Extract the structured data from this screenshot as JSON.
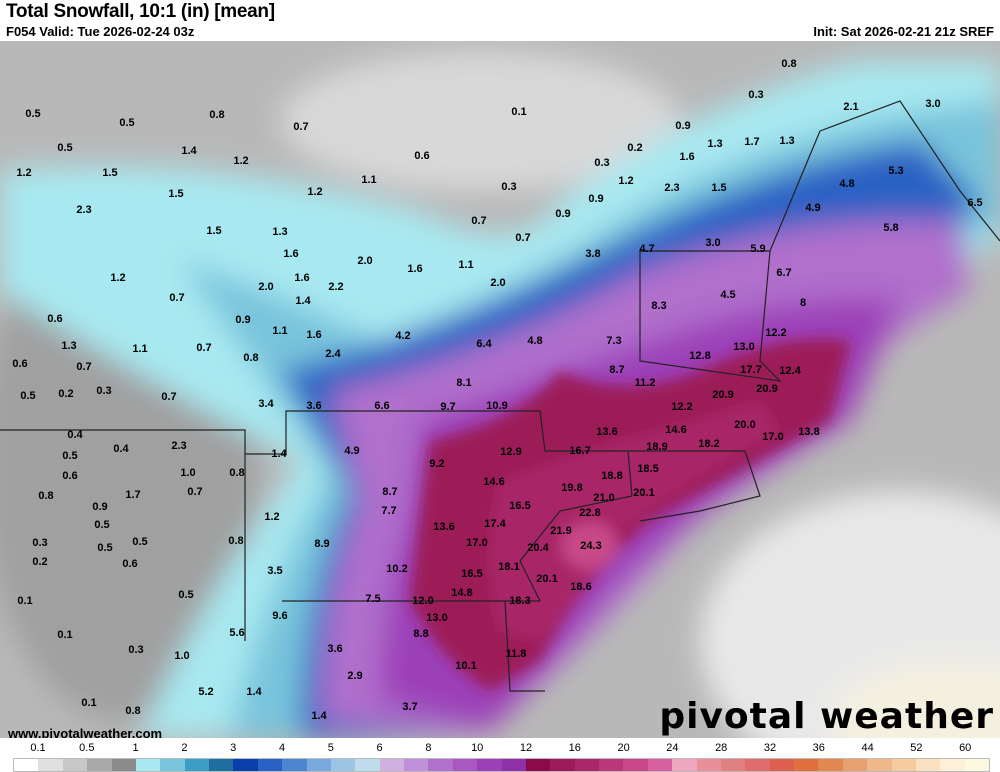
{
  "header": {
    "title": "Total Snowfall, 10:1 (in) [mean]",
    "valid": "F054 Valid: Tue 2026-02-24 03z",
    "init": "Init: Sat 2026-02-21 21z SREF"
  },
  "branding": {
    "logo": "pivotal weather",
    "url": "www.pivotalweather.com"
  },
  "legend": {
    "ticks": [
      "0.1",
      "0.5",
      "1",
      "2",
      "3",
      "4",
      "5",
      "6",
      "8",
      "10",
      "12",
      "16",
      "20",
      "24",
      "28",
      "32",
      "36",
      "44",
      "52",
      "60"
    ],
    "colors": [
      "#ffffff",
      "#e0e0e0",
      "#c8c8c8",
      "#a8a8a8",
      "#8c8c8c",
      "#a8e8f0",
      "#78c4dc",
      "#3c9ec4",
      "#1e6ea0",
      "#0a3eaa",
      "#2a62c4",
      "#4c86d0",
      "#78a8dc",
      "#9cc4e4",
      "#c0dcec",
      "#d0b0e0",
      "#c090d8",
      "#b070cc",
      "#a858c0",
      "#9c40b8",
      "#9030a8",
      "#8c0a48",
      "#9c1a58",
      "#a82868",
      "#b83878",
      "#c84888",
      "#d860a0",
      "#f0a8c0",
      "#e89098",
      "#e08080",
      "#e06c6c",
      "#e06050",
      "#e07040",
      "#e08850",
      "#e8a070",
      "#f0b888",
      "#f4cca0",
      "#f8e0c0",
      "#fcf0d8",
      "#fcf8e0"
    ]
  },
  "map": {
    "values": [
      "0.5",
      "0.5",
      "0.8",
      "0.7",
      "0.1",
      "0.8",
      "0.3",
      "0.9",
      "2.1",
      "3.0",
      "0.5",
      "1.4",
      "1.2",
      "0.6",
      "0.2",
      "1.6",
      "1.3",
      "1.7",
      "1.3",
      "1.2",
      "1.5",
      "1.1",
      "0.3",
      "1.2",
      "0.3",
      "2.3",
      "1.5",
      "0.9",
      "4.8",
      "5.3",
      "1.5",
      "1.2",
      "2.3",
      "0.7",
      "0.9",
      "4.9",
      "6.5",
      "1.5",
      "1.3",
      "0.7",
      "4.7",
      "3.0",
      "5.9",
      "5.8",
      "1.6",
      "2.0",
      "1.6",
      "1.1",
      "3.8",
      "1.2",
      "2.0",
      "1.6",
      "2.2",
      "2.0",
      "6.7",
      "0.7",
      "1.4",
      "8.3",
      "4.5",
      "8",
      "0.6",
      "0.9",
      "1.1",
      "1.6",
      "4.2",
      "6.4",
      "4.8",
      "7.3",
      "12.2",
      "1.3",
      "1.1",
      "0.7",
      "0.8",
      "2.4",
      "12.8",
      "13.0",
      "0.6",
      "0.7",
      "8.1",
      "8.7",
      "11.2",
      "17.7",
      "12.4",
      "0.5",
      "0.2",
      "0.3",
      "0.7",
      "20.9",
      "20.9",
      "3.4",
      "3.6",
      "6.6",
      "9.7",
      "10.9",
      "12.2",
      "0.4",
      "2.3",
      "1.4",
      "4.9",
      "12.9",
      "16.7",
      "13.6",
      "14.6",
      "18.9",
      "18.2",
      "20.0",
      "17.0",
      "13.8",
      "0.4",
      "0.5",
      "9.2",
      "18.8",
      "18.5",
      "0.6",
      "1.0",
      "0.8",
      "14.6",
      "19.8",
      "21.0",
      "20.1",
      "0.8",
      "0.9",
      "1.7",
      "0.7",
      "8.7",
      "16.5",
      "22.8",
      "0.5",
      "1.2",
      "7.7",
      "17.4",
      "21.9",
      "0.3",
      "0.5",
      "0.5",
      "0.8",
      "8.9",
      "13.6",
      "17.0",
      "20.4",
      "24.3",
      "0.2",
      "0.6",
      "3.5",
      "10.2",
      "18.1",
      "0.1",
      "0.5",
      "7.5",
      "16.5",
      "20.1",
      "18.6",
      "9.6",
      "12.0",
      "14.8",
      "18.3",
      "13.0",
      "0.1",
      "5.6",
      "8.8",
      "0.3",
      "3.6",
      "1.0",
      "11.8",
      "10.1",
      "2.9",
      "5.2",
      "1.4",
      "0.1",
      "0.8",
      "3.7",
      "1.4"
    ]
  }
}
